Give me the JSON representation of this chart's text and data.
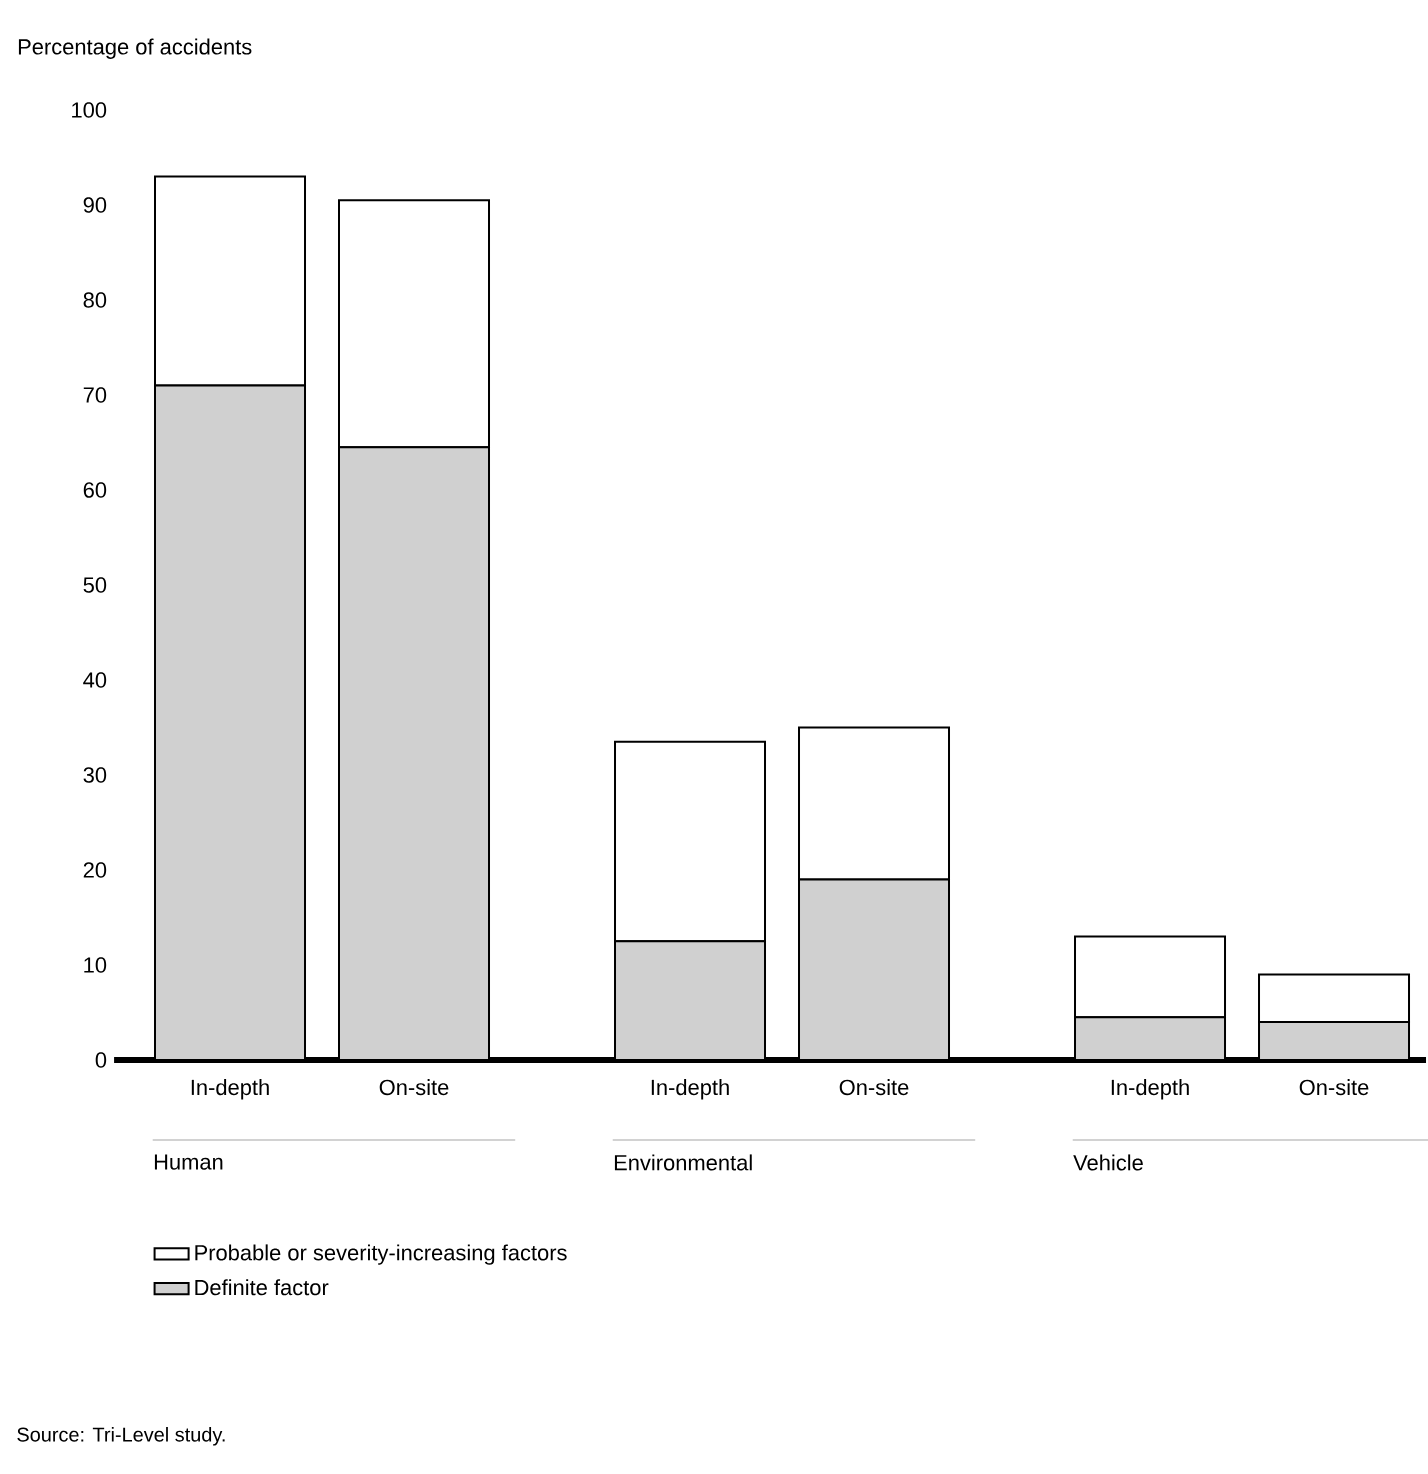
{
  "chart_data": {
    "type": "bar",
    "stacked": true,
    "ylabel": "Percentage of accidents",
    "categories": [
      "In-depth",
      "On-site",
      "In-depth",
      "On-site",
      "In-depth",
      "On-site"
    ],
    "series": [
      {
        "name": "Definite factor",
        "color": "#d0d0d0",
        "values": [
          71,
          64.5,
          12.5,
          19,
          4.5,
          4
        ]
      },
      {
        "name": "Probable or severity-increasing factors",
        "color": "#ffffff",
        "values": [
          22,
          26,
          21,
          16,
          8.5,
          5
        ]
      }
    ],
    "ylim": [
      0,
      100
    ],
    "yticks": [
      0,
      10,
      20,
      30,
      40,
      50,
      60,
      70,
      80,
      90,
      100
    ],
    "grid": false,
    "legend": "bottom",
    "annotations": [
      "Human",
      "Environmental",
      "Vehicle",
      "Source: Tri-Level study."
    ]
  }
}
